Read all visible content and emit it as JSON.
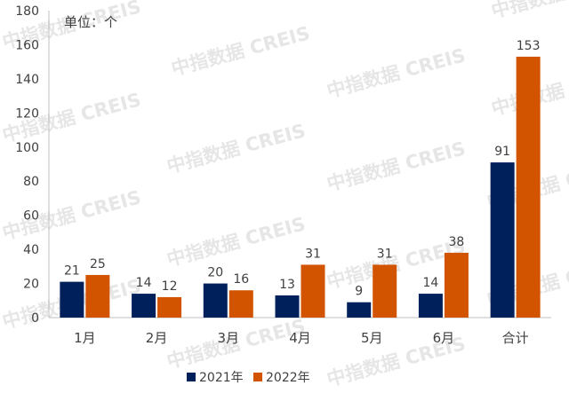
{
  "chart_data": {
    "type": "bar",
    "unit_label": "单位：个",
    "categories": [
      "1月",
      "2月",
      "3月",
      "4月",
      "5月",
      "6月",
      "合计"
    ],
    "series": [
      {
        "name": "2021年",
        "color": "#00205b",
        "values": [
          21,
          14,
          20,
          13,
          9,
          14,
          91
        ]
      },
      {
        "name": "2022年",
        "color": "#d35400",
        "values": [
          25,
          12,
          16,
          31,
          31,
          38,
          153
        ]
      }
    ],
    "y_ticks": [
      0,
      20,
      40,
      60,
      80,
      100,
      120,
      140,
      160,
      180
    ],
    "ylim": [
      0,
      180
    ],
    "grid": false,
    "legend_position": "bottom",
    "data_labels": true
  },
  "watermark": {
    "text": "中指数据 CREIS"
  }
}
